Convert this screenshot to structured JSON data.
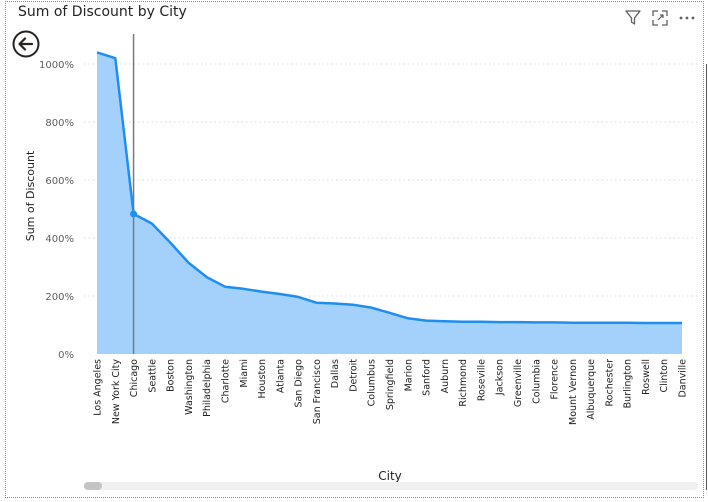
{
  "visual": {
    "title": "Sum of Discount by City",
    "icons": [
      "filter-icon",
      "focus-mode-icon",
      "more-options-icon",
      "back-arrow-icon"
    ]
  },
  "colors": {
    "line": "#1f8ef1",
    "area": "#a4d1fb",
    "gridline": "#d9d9d9",
    "crosshair": "#7a7a7a",
    "text": "#252423"
  },
  "chart_data": {
    "type": "area",
    "title": "Sum of Discount by City",
    "xlabel": "City",
    "ylabel": "Sum of Discount",
    "ylim": [
      0,
      1100
    ],
    "yticks": [
      0,
      200,
      400,
      600,
      800,
      1000
    ],
    "ytick_labels": [
      "0%",
      "200%",
      "400%",
      "600%",
      "800%",
      "1000%"
    ],
    "grid": true,
    "highlighted_category": "Chicago",
    "categories": [
      "Los Angeles",
      "New York City",
      "Chicago",
      "Seattle",
      "Boston",
      "Washington",
      "Philadelphia",
      "Charlotte",
      "Miami",
      "Houston",
      "Atlanta",
      "San Diego",
      "San Francisco",
      "Dallas",
      "Detroit",
      "Columbus",
      "Springfield",
      "Marion",
      "Sanford",
      "Auburn",
      "Richmond",
      "Roseville",
      "Jackson",
      "Greenville",
      "Columbia",
      "Florence",
      "Mount Vernon",
      "Albuquerque",
      "Rochester",
      "Burlington",
      "Roswell",
      "Clinton",
      "Danville"
    ],
    "series": [
      {
        "values": [
          1040,
          1020,
          483,
          450,
          385,
          315,
          265,
          232,
          225,
          215,
          207,
          197,
          177,
          174,
          170,
          160,
          142,
          123,
          115,
          113,
          111,
          111,
          110,
          110,
          109,
          109,
          108,
          108,
          108,
          108,
          107,
          107,
          107
        ]
      }
    ]
  }
}
